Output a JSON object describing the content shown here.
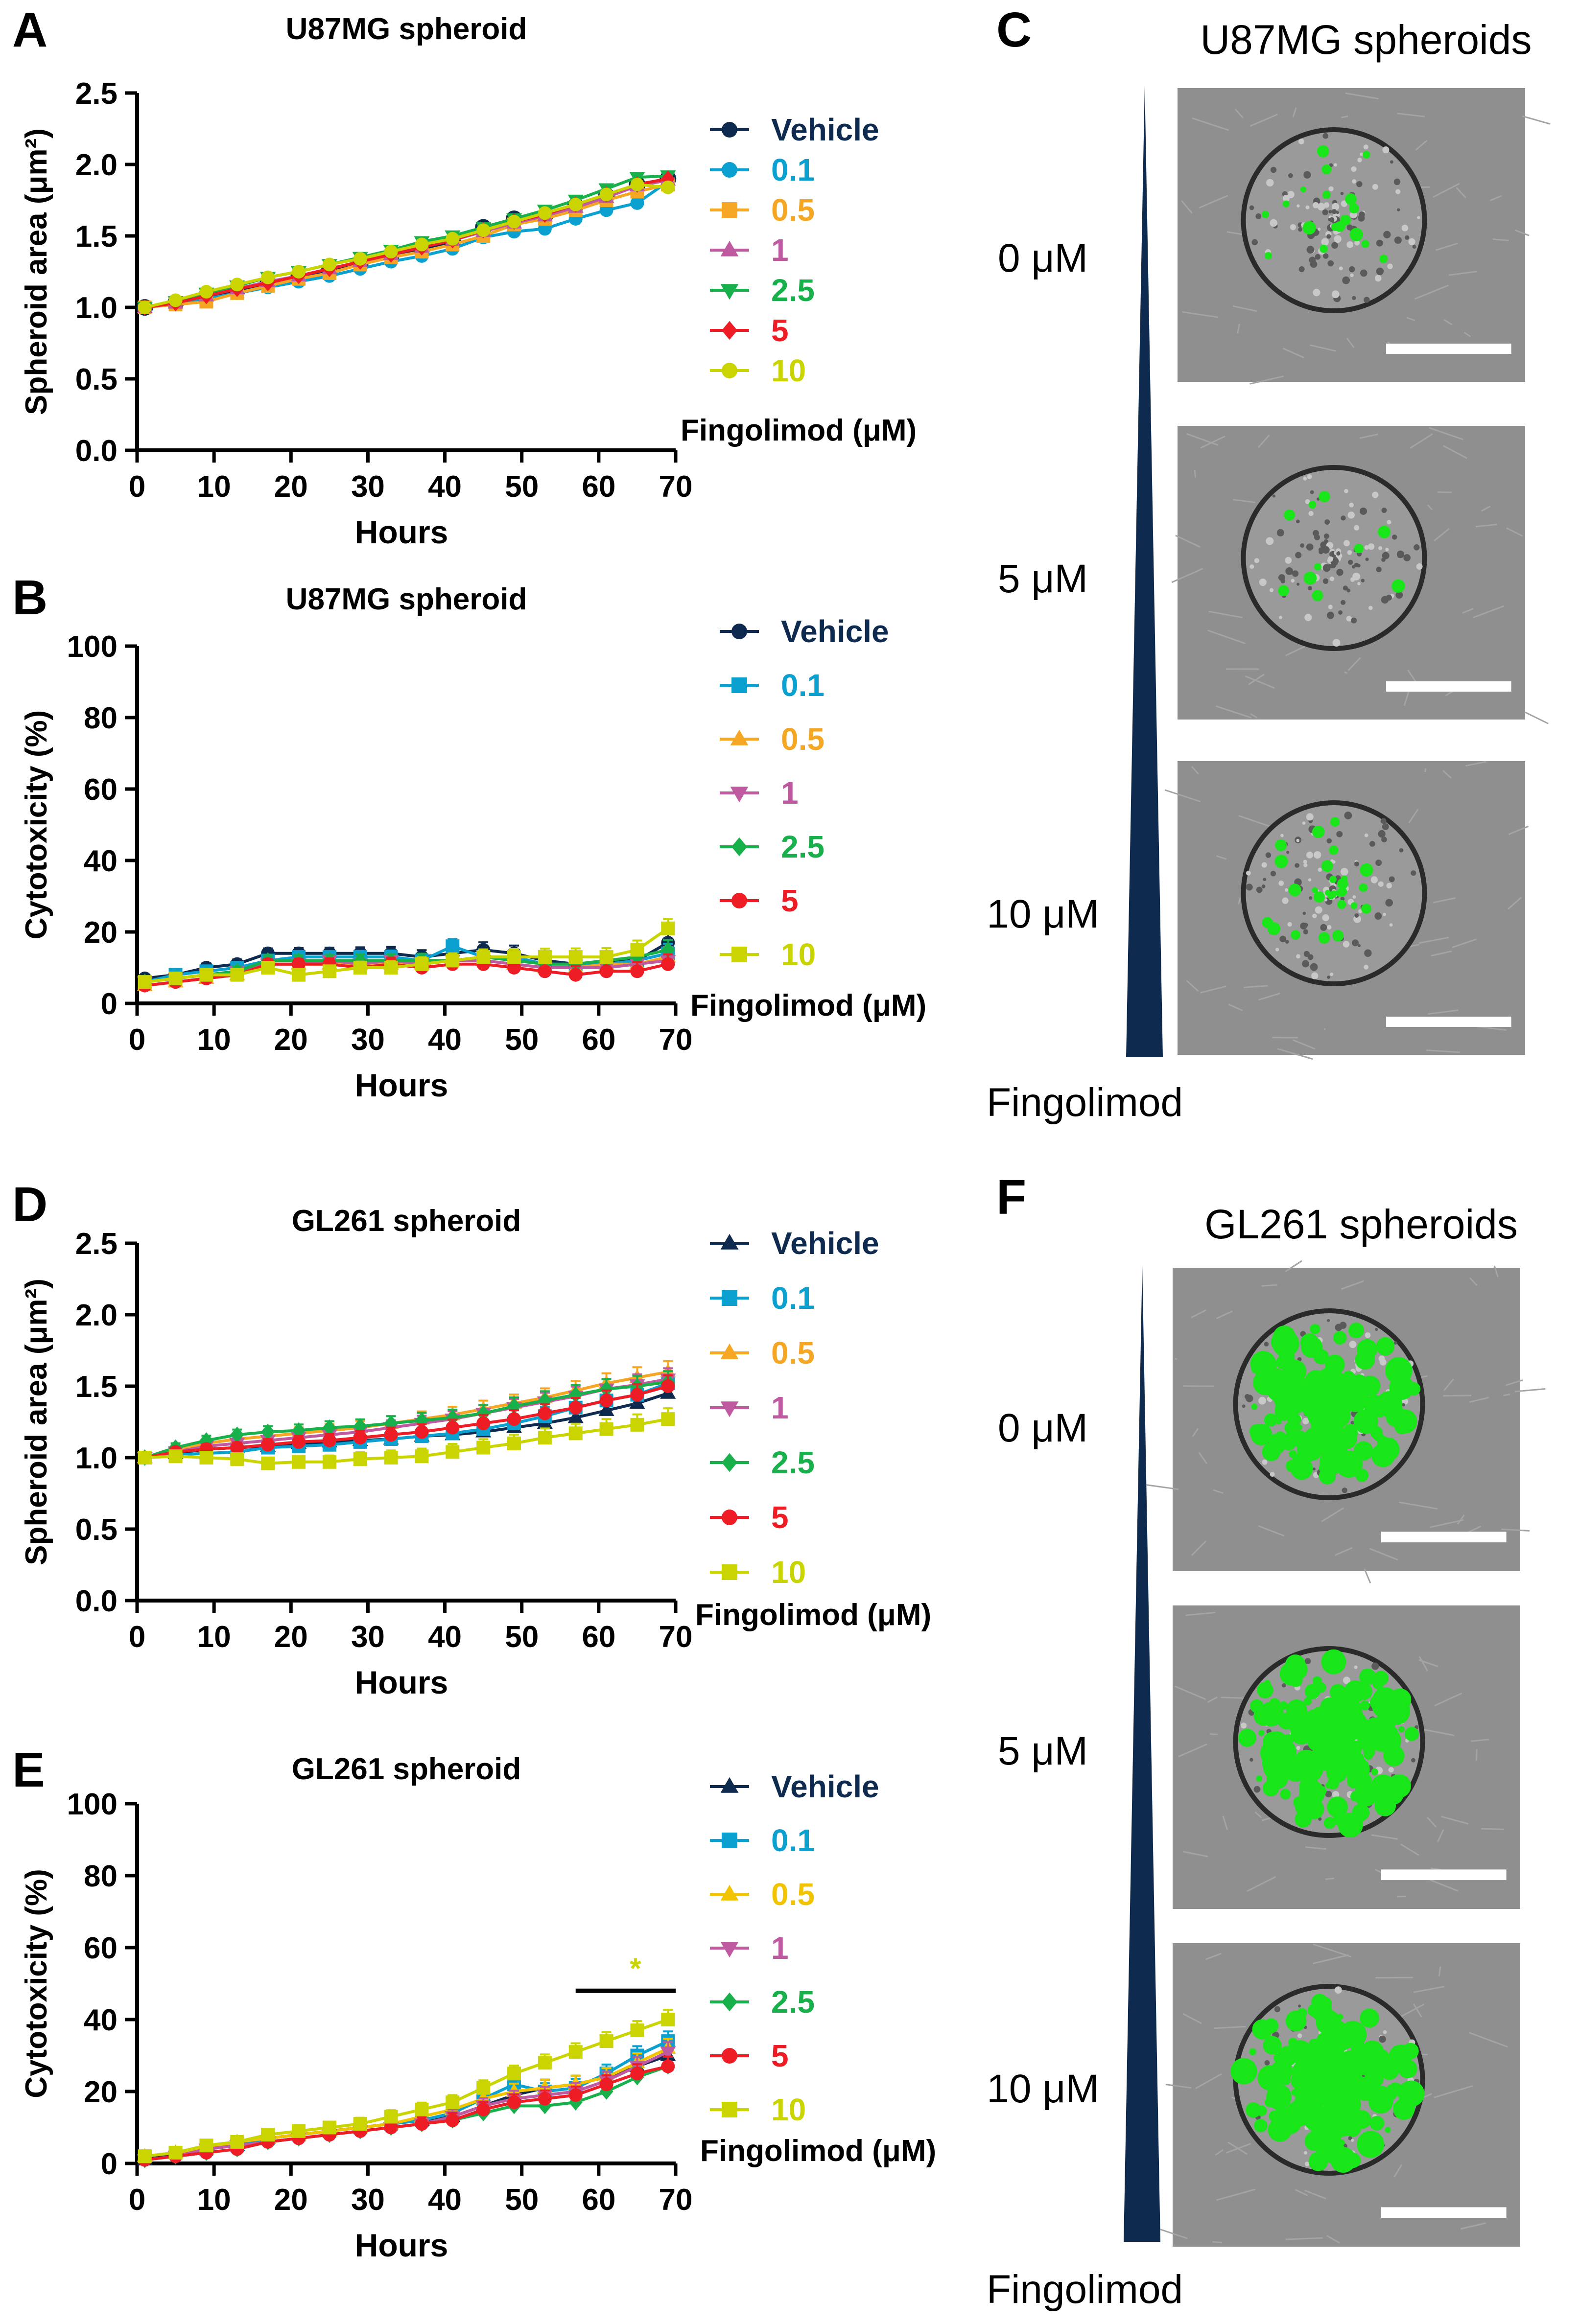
{
  "colors": {
    "vehicle": "#0f2a4f",
    "c0_1": "#0aa0d0",
    "c0_5": "#f5a623",
    "c0_5E": "#f2c400",
    "c1": "#c05aa0",
    "c2_5": "#17b04a",
    "c5": "#ee1c25",
    "c10": "#c9d400",
    "fluor": "#19e619",
    "scalebar": "#ffffff",
    "wedge": "#0f2a4f"
  },
  "panels": {
    "A": {
      "letter": "A"
    },
    "B": {
      "letter": "B"
    },
    "C": {
      "letter": "C"
    },
    "D": {
      "letter": "D"
    },
    "E": {
      "letter": "E"
    },
    "F": {
      "letter": "F"
    }
  },
  "legend_title": "Fingolimod (μM)",
  "chart_data": [
    {
      "id": "A",
      "type": "line",
      "title": "U87MG spheroid",
      "xlabel": "Hours",
      "ylabel": "Spheroid area (μm²)",
      "xlim": [
        0,
        70
      ],
      "ylim": [
        0,
        2.5
      ],
      "xticks": [
        "0",
        "10",
        "20",
        "30",
        "40",
        "50",
        "60",
        "70"
      ],
      "yticks": [
        "0.0",
        "0.5",
        "1.0",
        "1.5",
        "2.0",
        "2.5"
      ],
      "x": [
        1,
        5,
        9,
        13,
        17,
        21,
        25,
        29,
        33,
        37,
        41,
        45,
        49,
        53,
        57,
        61,
        65,
        69
      ],
      "series": [
        {
          "name": "Vehicle",
          "marker": "circle",
          "values": [
            1.0,
            1.03,
            1.08,
            1.12,
            1.17,
            1.21,
            1.26,
            1.31,
            1.36,
            1.41,
            1.46,
            1.56,
            1.62,
            1.64,
            1.71,
            1.78,
            1.86,
            1.9
          ]
        },
        {
          "name": "0.1",
          "marker": "circle",
          "values": [
            1.0,
            1.02,
            1.06,
            1.1,
            1.14,
            1.18,
            1.22,
            1.27,
            1.32,
            1.36,
            1.41,
            1.49,
            1.53,
            1.55,
            1.62,
            1.68,
            1.73,
            1.88
          ]
        },
        {
          "name": "0.5",
          "marker": "square",
          "values": [
            1.0,
            1.02,
            1.04,
            1.1,
            1.15,
            1.2,
            1.24,
            1.3,
            1.35,
            1.39,
            1.44,
            1.5,
            1.58,
            1.62,
            1.68,
            1.75,
            1.81,
            1.86
          ]
        },
        {
          "name": "1",
          "marker": "triangle-up",
          "values": [
            1.0,
            1.03,
            1.08,
            1.13,
            1.18,
            1.22,
            1.27,
            1.32,
            1.37,
            1.42,
            1.47,
            1.53,
            1.59,
            1.64,
            1.7,
            1.77,
            1.85,
            1.89
          ]
        },
        {
          "name": "2.5",
          "marker": "triangle-down",
          "values": [
            1.0,
            1.04,
            1.1,
            1.15,
            1.21,
            1.25,
            1.3,
            1.35,
            1.4,
            1.46,
            1.5,
            1.56,
            1.62,
            1.68,
            1.75,
            1.83,
            1.91,
            1.92
          ]
        },
        {
          "name": "5",
          "marker": "diamond",
          "values": [
            1.0,
            1.03,
            1.08,
            1.13,
            1.17,
            1.22,
            1.27,
            1.32,
            1.37,
            1.42,
            1.47,
            1.54,
            1.6,
            1.65,
            1.72,
            1.79,
            1.86,
            1.9
          ]
        },
        {
          "name": "10",
          "marker": "circle",
          "values": [
            1.0,
            1.05,
            1.11,
            1.16,
            1.21,
            1.25,
            1.3,
            1.34,
            1.39,
            1.44,
            1.48,
            1.54,
            1.6,
            1.66,
            1.72,
            1.79,
            1.86,
            1.84
          ]
        }
      ]
    },
    {
      "id": "B",
      "type": "line",
      "title": "U87MG spheroid",
      "xlabel": "Hours",
      "ylabel": "Cytotoxicity (%)",
      "xlim": [
        0,
        70
      ],
      "ylim": [
        0,
        100
      ],
      "xticks": [
        "0",
        "10",
        "20",
        "30",
        "40",
        "50",
        "60",
        "70"
      ],
      "yticks": [
        "0",
        "20",
        "40",
        "60",
        "80",
        "100"
      ],
      "x": [
        1,
        5,
        9,
        13,
        17,
        21,
        25,
        29,
        33,
        37,
        41,
        45,
        49,
        53,
        57,
        61,
        65,
        69
      ],
      "series": [
        {
          "name": "Vehicle",
          "marker": "circle",
          "values": [
            7,
            8,
            10,
            11,
            14,
            14,
            14,
            14,
            14,
            13,
            14,
            15,
            14,
            12,
            11,
            12,
            12,
            17
          ]
        },
        {
          "name": "0.1",
          "marker": "square",
          "values": [
            6,
            8,
            9,
            10,
            12,
            13,
            13,
            13,
            13,
            12,
            16,
            13,
            13,
            11,
            11,
            11,
            12,
            14
          ]
        },
        {
          "name": "0.5",
          "marker": "triangle-up",
          "values": [
            5,
            6,
            7,
            8,
            11,
            11,
            11,
            11,
            11,
            11,
            12,
            12,
            11,
            10,
            10,
            11,
            11,
            13
          ]
        },
        {
          "name": "1",
          "marker": "triangle-down",
          "values": [
            6,
            7,
            8,
            9,
            11,
            11,
            12,
            11,
            12,
            11,
            12,
            12,
            11,
            10,
            10,
            10,
            11,
            12
          ]
        },
        {
          "name": "2.5",
          "marker": "diamond",
          "values": [
            6,
            7,
            8,
            9,
            12,
            12,
            12,
            12,
            12,
            12,
            12,
            13,
            12,
            11,
            11,
            12,
            13,
            15
          ]
        },
        {
          "name": "5",
          "marker": "circle",
          "values": [
            5,
            6,
            7,
            8,
            11,
            11,
            11,
            10,
            11,
            10,
            11,
            11,
            10,
            9,
            8,
            9,
            9,
            11
          ]
        },
        {
          "name": "10",
          "marker": "square",
          "values": [
            6,
            7,
            8,
            8,
            10,
            8,
            9,
            10,
            10,
            11,
            12,
            13,
            13,
            13,
            13,
            13,
            15,
            21
          ]
        }
      ]
    },
    {
      "id": "D",
      "type": "line",
      "title": "GL261 spheroid",
      "xlabel": "Hours",
      "ylabel": "Spheroid area (μm²)",
      "xlim": [
        0,
        70
      ],
      "ylim": [
        0,
        2.5
      ],
      "xticks": [
        "0",
        "10",
        "20",
        "30",
        "40",
        "50",
        "60",
        "70"
      ],
      "yticks": [
        "0.0",
        "0.5",
        "1.0",
        "1.5",
        "2.0",
        "2.5"
      ],
      "x": [
        1,
        5,
        9,
        13,
        17,
        21,
        25,
        29,
        33,
        37,
        41,
        45,
        49,
        53,
        57,
        61,
        65,
        69
      ],
      "series": [
        {
          "name": "Vehicle",
          "marker": "triangle-up",
          "values": [
            1.0,
            1.03,
            1.06,
            1.07,
            1.08,
            1.1,
            1.11,
            1.12,
            1.13,
            1.15,
            1.16,
            1.18,
            1.21,
            1.24,
            1.28,
            1.33,
            1.38,
            1.45
          ]
        },
        {
          "name": "0.1",
          "marker": "square",
          "values": [
            1.0,
            1.02,
            1.03,
            1.04,
            1.07,
            1.08,
            1.09,
            1.11,
            1.13,
            1.15,
            1.17,
            1.2,
            1.24,
            1.29,
            1.35,
            1.4,
            1.44,
            1.52
          ]
        },
        {
          "name": "0.5",
          "marker": "triangle-up",
          "values": [
            1.0,
            1.06,
            1.1,
            1.13,
            1.15,
            1.17,
            1.19,
            1.21,
            1.24,
            1.27,
            1.3,
            1.34,
            1.38,
            1.42,
            1.47,
            1.52,
            1.56,
            1.6
          ]
        },
        {
          "name": "1",
          "marker": "triangle-down",
          "values": [
            1.0,
            1.04,
            1.08,
            1.1,
            1.12,
            1.14,
            1.16,
            1.18,
            1.21,
            1.24,
            1.27,
            1.31,
            1.35,
            1.39,
            1.43,
            1.48,
            1.51,
            1.55
          ]
        },
        {
          "name": "2.5",
          "marker": "diamond",
          "values": [
            1.0,
            1.07,
            1.12,
            1.16,
            1.18,
            1.19,
            1.21,
            1.22,
            1.24,
            1.26,
            1.28,
            1.31,
            1.36,
            1.4,
            1.44,
            1.48,
            1.5,
            1.53
          ]
        },
        {
          "name": "5",
          "marker": "circle",
          "values": [
            1.0,
            1.04,
            1.06,
            1.07,
            1.09,
            1.11,
            1.12,
            1.14,
            1.16,
            1.18,
            1.21,
            1.24,
            1.27,
            1.31,
            1.35,
            1.4,
            1.44,
            1.5
          ]
        },
        {
          "name": "10",
          "marker": "square",
          "values": [
            1.0,
            1.01,
            1.0,
            0.99,
            0.96,
            0.97,
            0.97,
            0.99,
            1.0,
            1.01,
            1.04,
            1.07,
            1.1,
            1.14,
            1.17,
            1.2,
            1.23,
            1.27
          ]
        }
      ]
    },
    {
      "id": "E",
      "type": "line",
      "title": "GL261 spheroid",
      "xlabel": "Hours",
      "ylabel": "Cytotoxicity (%)",
      "xlim": [
        0,
        70
      ],
      "ylim": [
        0,
        100
      ],
      "xticks": [
        "0",
        "10",
        "20",
        "30",
        "40",
        "50",
        "60",
        "70"
      ],
      "yticks": [
        "0",
        "20",
        "40",
        "60",
        "80",
        "100"
      ],
      "x": [
        1,
        5,
        9,
        13,
        17,
        21,
        25,
        29,
        33,
        37,
        41,
        45,
        49,
        53,
        57,
        61,
        65,
        69
      ],
      "significance": {
        "label": "*",
        "x_range": [
          57,
          70
        ],
        "y": 48
      },
      "series": [
        {
          "name": "Vehicle",
          "marker": "triangle-up",
          "values": [
            1,
            3,
            4,
            5,
            7,
            8,
            9,
            10,
            11,
            12,
            13,
            16,
            19,
            21,
            22,
            24,
            27,
            30
          ]
        },
        {
          "name": "0.1",
          "marker": "square",
          "values": [
            2,
            3,
            4,
            5,
            7,
            8,
            9,
            10,
            11,
            12,
            14,
            18,
            22,
            20,
            21,
            25,
            30,
            34
          ]
        },
        {
          "name": "0.5",
          "marker": "triangle-up",
          "values": [
            2,
            3,
            4,
            6,
            7,
            8,
            9,
            10,
            11,
            13,
            15,
            18,
            20,
            21,
            22,
            24,
            28,
            32
          ]
        },
        {
          "name": "1",
          "marker": "triangle-down",
          "values": [
            1,
            2,
            4,
            5,
            6,
            7,
            8,
            9,
            10,
            11,
            13,
            16,
            18,
            19,
            20,
            23,
            27,
            31
          ]
        },
        {
          "name": "2.5",
          "marker": "diamond",
          "values": [
            1,
            2,
            3,
            4,
            6,
            7,
            8,
            9,
            10,
            11,
            12,
            14,
            16,
            16,
            17,
            20,
            24,
            27
          ]
        },
        {
          "name": "5",
          "marker": "circle",
          "values": [
            1,
            2,
            3,
            4,
            6,
            7,
            8,
            9,
            10,
            11,
            12,
            15,
            17,
            18,
            19,
            22,
            25,
            27
          ]
        },
        {
          "name": "10",
          "marker": "square",
          "values": [
            2,
            3,
            5,
            6,
            8,
            9,
            10,
            11,
            13,
            15,
            17,
            21,
            25,
            28,
            31,
            34,
            37,
            40
          ]
        }
      ]
    }
  ],
  "images": {
    "C": {
      "title": "U87MG spheroids",
      "labels": [
        "0 μM",
        "5 μM",
        "10 μM"
      ],
      "axis_label": "Fingolimod"
    },
    "F": {
      "title": "GL261 spheroids",
      "labels": [
        "0 μM",
        "5 μM",
        "10 μM"
      ],
      "axis_label": "Fingolimod"
    }
  }
}
